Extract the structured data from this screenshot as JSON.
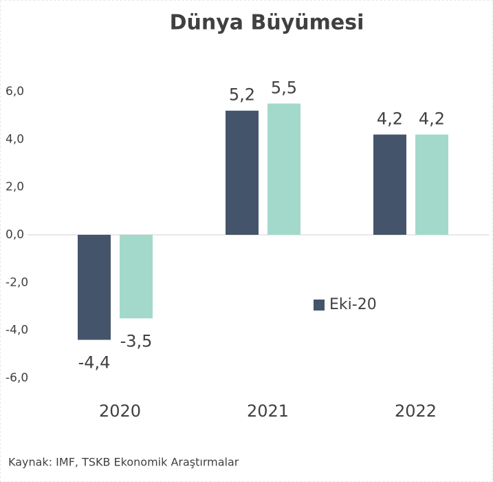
{
  "chart_data": {
    "type": "bar",
    "title": "Dünya Büyümesi",
    "categories": [
      "2020",
      "2021",
      "2022"
    ],
    "series": [
      {
        "name": "Eki-20",
        "color": "#44546a",
        "values": [
          -4.4,
          5.2,
          4.2
        ],
        "value_labels": [
          "-4,4",
          "5,2",
          "4,2"
        ]
      },
      {
        "color": "#a3d9cb",
        "values": [
          -3.5,
          5.5,
          4.2
        ],
        "value_labels": [
          "-3,5",
          "5,5",
          "4,2"
        ]
      }
    ],
    "ylim": [
      -6,
      6
    ],
    "yticks": [
      {
        "value": 6,
        "label": "6,0"
      },
      {
        "value": 4,
        "label": "4,0"
      },
      {
        "value": 2,
        "label": "2,0"
      },
      {
        "value": 0,
        "label": "0,0"
      },
      {
        "value": -2,
        "label": "-2,0"
      },
      {
        "value": -4,
        "label": "-4,0"
      },
      {
        "value": -6,
        "label": "-6,0"
      }
    ],
    "grid": false,
    "legend": "right",
    "source": "Kaynak: IMF, TSKB Ekonomik Araştırmalar"
  }
}
